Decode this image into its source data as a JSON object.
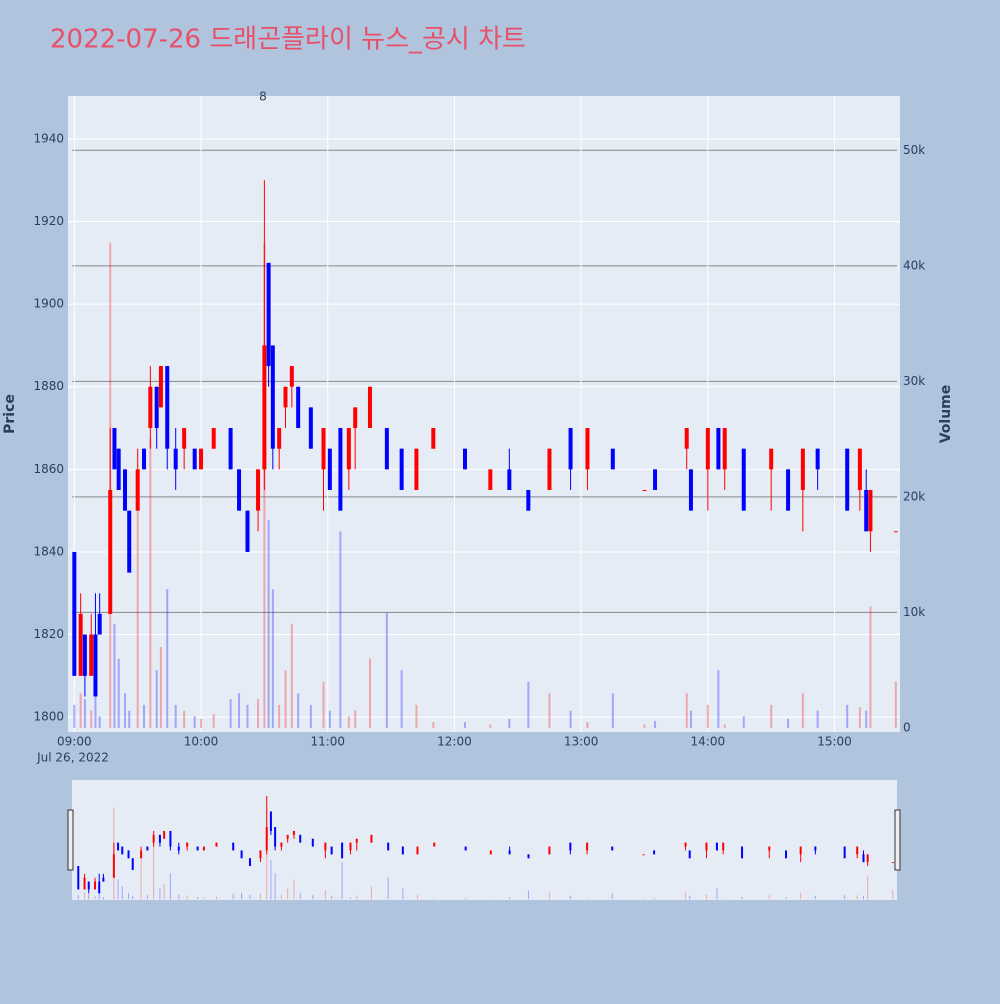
{
  "chart_data": {
    "type": "candlestick",
    "title": "2022-07-26 드래곤플라이 뉴스_공시 차트",
    "y_title": "Price",
    "y2_title": "Volume",
    "annotation": "8",
    "x_date_label": "Jul 26, 2022",
    "increasing_color": "#ff0000",
    "decreasing_color": "#0000ff",
    "x": [
      "09:00",
      "09:03",
      "09:05",
      "09:08",
      "09:10",
      "09:12",
      "09:17",
      "09:19",
      "09:21",
      "09:24",
      "09:26",
      "09:30",
      "09:33",
      "09:36",
      "09:39",
      "09:41",
      "09:44",
      "09:48",
      "09:52",
      "09:57",
      "10:00",
      "10:06",
      "10:14",
      "10:18",
      "10:22",
      "10:27",
      "10:30",
      "10:32",
      "10:34",
      "10:37",
      "10:40",
      "10:43",
      "10:46",
      "10:52",
      "10:58",
      "11:01",
      "11:06",
      "11:10",
      "11:13",
      "11:20",
      "11:28",
      "11:35",
      "11:42",
      "11:50",
      "12:05",
      "12:17",
      "12:26",
      "12:35",
      "12:45",
      "12:55",
      "13:03",
      "13:15",
      "13:30",
      "13:35",
      "13:50",
      "13:52",
      "14:00",
      "14:05",
      "14:08",
      "14:17",
      "14:30",
      "14:38",
      "14:45",
      "14:52",
      "15:06",
      "15:12",
      "15:15",
      "15:17",
      "15:29"
    ],
    "open": [
      1840,
      1810,
      1820,
      1810,
      1820,
      1825,
      1825,
      1870,
      1865,
      1860,
      1850,
      1850,
      1865,
      1870,
      1880,
      1875,
      1885,
      1865,
      1865,
      1865,
      1860,
      1865,
      1870,
      1860,
      1850,
      1850,
      1860,
      1910,
      1890,
      1865,
      1875,
      1880,
      1880,
      1875,
      1860,
      1865,
      1870,
      1860,
      1870,
      1870,
      1870,
      1865,
      1855,
      1865,
      1865,
      1855,
      1860,
      1855,
      1855,
      1870,
      1860,
      1865,
      1855,
      1860,
      1865,
      1860,
      1860,
      1870,
      1860,
      1865,
      1860,
      1860,
      1855,
      1865,
      1865,
      1855,
      1855,
      1845,
      1845
    ],
    "high": [
      1840,
      1830,
      1820,
      1825,
      1830,
      1830,
      1870,
      1870,
      1865,
      1860,
      1850,
      1865,
      1865,
      1885,
      1880,
      1885,
      1885,
      1870,
      1870,
      1865,
      1865,
      1870,
      1870,
      1860,
      1850,
      1860,
      1930,
      1910,
      1890,
      1870,
      1880,
      1885,
      1880,
      1875,
      1870,
      1865,
      1870,
      1870,
      1875,
      1880,
      1870,
      1865,
      1865,
      1870,
      1865,
      1860,
      1865,
      1855,
      1865,
      1870,
      1870,
      1865,
      1855,
      1860,
      1870,
      1860,
      1870,
      1870,
      1870,
      1865,
      1865,
      1860,
      1865,
      1865,
      1865,
      1865,
      1860,
      1855,
      1845
    ],
    "low": [
      1810,
      1810,
      1805,
      1810,
      1805,
      1820,
      1825,
      1860,
      1855,
      1850,
      1835,
      1850,
      1860,
      1865,
      1865,
      1875,
      1860,
      1855,
      1860,
      1860,
      1860,
      1865,
      1860,
      1850,
      1840,
      1845,
      1855,
      1880,
      1860,
      1860,
      1870,
      1875,
      1870,
      1865,
      1850,
      1855,
      1850,
      1855,
      1860,
      1870,
      1860,
      1855,
      1855,
      1865,
      1860,
      1855,
      1855,
      1850,
      1855,
      1855,
      1855,
      1860,
      1855,
      1855,
      1860,
      1850,
      1850,
      1860,
      1855,
      1850,
      1850,
      1850,
      1845,
      1855,
      1850,
      1850,
      1845,
      1840,
      1845
    ],
    "close": [
      1810,
      1825,
      1810,
      1820,
      1805,
      1820,
      1855,
      1860,
      1855,
      1850,
      1835,
      1860,
      1860,
      1880,
      1870,
      1885,
      1865,
      1860,
      1870,
      1860,
      1865,
      1870,
      1860,
      1850,
      1840,
      1860,
      1890,
      1885,
      1865,
      1870,
      1880,
      1885,
      1870,
      1865,
      1870,
      1855,
      1850,
      1870,
      1875,
      1880,
      1860,
      1855,
      1865,
      1870,
      1860,
      1860,
      1855,
      1850,
      1865,
      1860,
      1870,
      1860,
      1855,
      1855,
      1870,
      1850,
      1870,
      1860,
      1870,
      1850,
      1865,
      1850,
      1865,
      1860,
      1850,
      1865,
      1845,
      1855,
      1845
    ],
    "volume": [
      2000,
      3000,
      2500,
      1500,
      3000,
      1000,
      42000,
      9000,
      6000,
      3000,
      1500,
      20000,
      2000,
      25000,
      5000,
      7000,
      12000,
      2000,
      1500,
      1000,
      800,
      1200,
      2500,
      3000,
      2000,
      2500,
      42000,
      18000,
      12000,
      2000,
      5000,
      9000,
      3000,
      2000,
      4000,
      1500,
      17000,
      1000,
      1500,
      6000,
      10000,
      5000,
      2000,
      500,
      500,
      300,
      800,
      4000,
      3000,
      1500,
      500,
      3000,
      300,
      600,
      3000,
      1500,
      2000,
      5000,
      300,
      1000,
      2000,
      800,
      3000,
      1500,
      2000,
      1800,
      1500,
      10500,
      4000
    ],
    "xlim": [
      "08:57",
      "15:31"
    ],
    "xticks": [
      "09:00",
      "10:00",
      "11:00",
      "12:00",
      "13:00",
      "14:00",
      "15:00"
    ],
    "ylim": [
      1796.4,
      1950.4
    ],
    "yticks": [
      1800,
      1820,
      1840,
      1860,
      1880,
      1900,
      1920,
      1940
    ],
    "y2lim": [
      -350,
      54700
    ],
    "y2ticks": [
      0,
      {
        "value": 10000,
        "label": "10k"
      },
      {
        "value": 20000,
        "label": "20k"
      },
      {
        "value": 30000,
        "label": "30k"
      },
      {
        "value": 40000,
        "label": "40k"
      },
      {
        "value": 50000,
        "label": "50k"
      }
    ],
    "grid": true
  }
}
